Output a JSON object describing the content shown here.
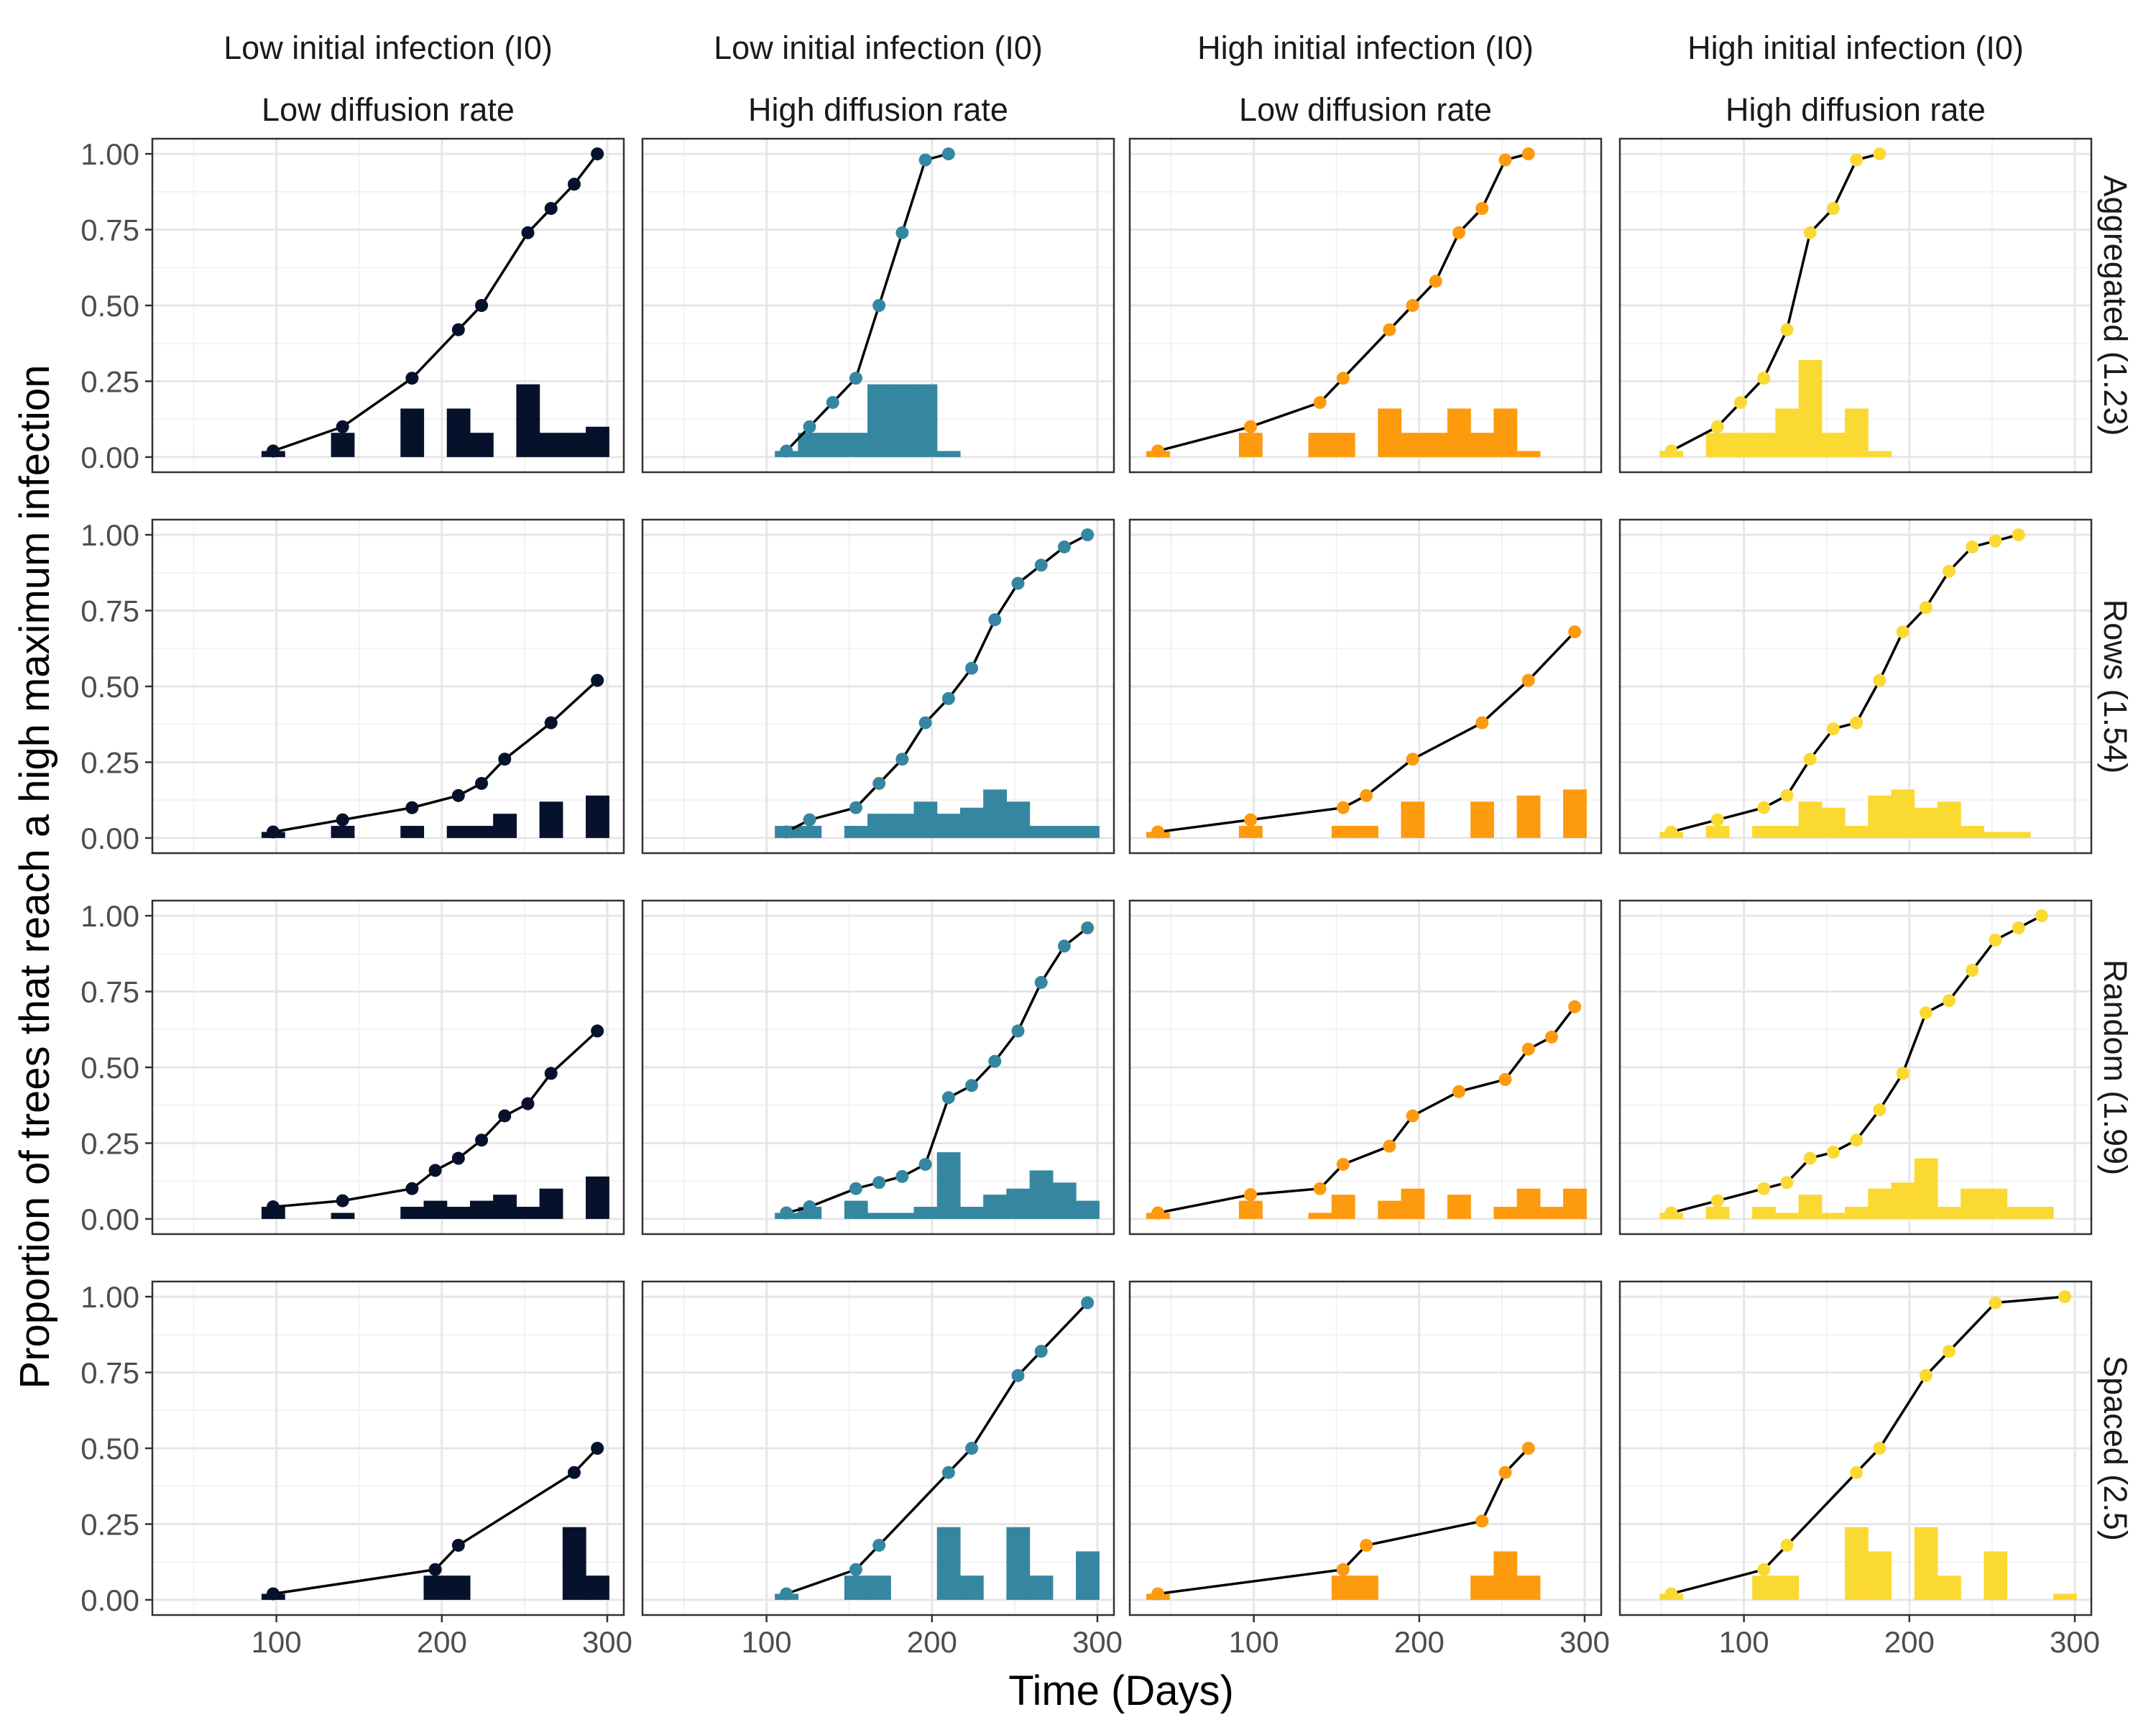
{
  "chart_data": {
    "type": "line",
    "layout": "facet-grid",
    "xlabel": "Time (Days)",
    "ylabel": "Proportion of trees that reach a high maximum infection",
    "xlim": [
      25,
      310
    ],
    "ylim": [
      -0.05,
      1.05
    ],
    "x_ticks": [
      100,
      200,
      300
    ],
    "y_ticks": [
      0,
      0.25,
      0.5,
      0.75,
      1
    ],
    "y_tick_labels": [
      "0.00",
      "0.25",
      "0.50",
      "0.75",
      "1.00"
    ],
    "grid": true,
    "bin_width": 14,
    "columns": [
      {
        "line1": "Low initial infection (I0)",
        "line2": "Low diffusion rate",
        "color": "#06122b"
      },
      {
        "line1": "Low initial infection (I0)",
        "line2": "High diffusion rate",
        "color": "#3587a1"
      },
      {
        "line1": "High initial infection (I0)",
        "line2": "Low diffusion rate",
        "color": "#fd9a0e"
      },
      {
        "line1": "High initial infection (I0)",
        "line2": "High diffusion rate",
        "color": "#fbd933"
      }
    ],
    "rows": [
      {
        "label": "Aggregated (1.23)"
      },
      {
        "label": "Rows (1.54)"
      },
      {
        "label": "Random (1.99)"
      },
      {
        "label": "Spaced (2.5)"
      }
    ],
    "panels": [
      [
        {
          "x": [
            98,
            140,
            182,
            210,
            224,
            252,
            266,
            280,
            294
          ],
          "y": [
            0.02,
            0.1,
            0.26,
            0.42,
            0.5,
            0.74,
            0.82,
            0.9,
            1.0
          ],
          "bars": [
            [
              98,
              0.02
            ],
            [
              140,
              0.08
            ],
            [
              182,
              0.16
            ],
            [
              210,
              0.16
            ],
            [
              224,
              0.08
            ],
            [
              252,
              0.24
            ],
            [
              266,
              0.08
            ],
            [
              280,
              0.08
            ],
            [
              294,
              0.1
            ]
          ]
        },
        {
          "x": [
            112,
            126,
            140,
            154,
            168,
            182,
            196,
            210
          ],
          "y": [
            0.02,
            0.1,
            0.18,
            0.26,
            0.5,
            0.74,
            0.98,
            1.0
          ],
          "bars": [
            [
              112,
              0.02
            ],
            [
              126,
              0.08
            ],
            [
              140,
              0.08
            ],
            [
              154,
              0.08
            ],
            [
              168,
              0.24
            ],
            [
              182,
              0.24
            ],
            [
              196,
              0.24
            ],
            [
              210,
              0.02
            ]
          ]
        },
        {
          "x": [
            42,
            98,
            140,
            154,
            182,
            196,
            210,
            224,
            238,
            252,
            266
          ],
          "y": [
            0.02,
            0.1,
            0.18,
            0.26,
            0.42,
            0.5,
            0.58,
            0.74,
            0.82,
            0.98,
            1.0
          ],
          "bars": [
            [
              42,
              0.02
            ],
            [
              98,
              0.08
            ],
            [
              140,
              0.08
            ],
            [
              154,
              0.08
            ],
            [
              182,
              0.16
            ],
            [
              196,
              0.08
            ],
            [
              210,
              0.08
            ],
            [
              224,
              0.16
            ],
            [
              238,
              0.08
            ],
            [
              252,
              0.16
            ],
            [
              266,
              0.02
            ]
          ]
        },
        {
          "x": [
            56,
            84,
            98,
            112,
            126,
            140,
            154,
            168,
            182
          ],
          "y": [
            0.02,
            0.1,
            0.18,
            0.26,
            0.42,
            0.74,
            0.82,
            0.98,
            1.0
          ],
          "bars": [
            [
              56,
              0.02
            ],
            [
              84,
              0.08
            ],
            [
              98,
              0.08
            ],
            [
              112,
              0.08
            ],
            [
              126,
              0.16
            ],
            [
              140,
              0.32
            ],
            [
              154,
              0.08
            ],
            [
              168,
              0.16
            ],
            [
              182,
              0.02
            ]
          ]
        }
      ],
      [
        {
          "x": [
            98,
            140,
            182,
            210,
            224,
            238,
            266,
            294
          ],
          "y": [
            0.02,
            0.06,
            0.1,
            0.14,
            0.18,
            0.26,
            0.38,
            0.52
          ],
          "bars": [
            [
              98,
              0.02
            ],
            [
              140,
              0.04
            ],
            [
              182,
              0.04
            ],
            [
              210,
              0.04
            ],
            [
              224,
              0.04
            ],
            [
              238,
              0.08
            ],
            [
              266,
              0.12
            ],
            [
              294,
              0.14
            ]
          ]
        },
        {
          "x": [
            112,
            126,
            154,
            168,
            182,
            196,
            210,
            224,
            238,
            252,
            266,
            280,
            294
          ],
          "y": [
            0.02,
            0.06,
            0.1,
            0.18,
            0.26,
            0.38,
            0.46,
            0.56,
            0.72,
            0.84,
            0.9,
            0.96,
            1.0
          ],
          "bars": [
            [
              112,
              0.04
            ],
            [
              126,
              0.04
            ],
            [
              154,
              0.04
            ],
            [
              168,
              0.08
            ],
            [
              182,
              0.08
            ],
            [
              196,
              0.12
            ],
            [
              210,
              0.08
            ],
            [
              224,
              0.1
            ],
            [
              238,
              0.16
            ],
            [
              252,
              0.12
            ],
            [
              266,
              0.04
            ],
            [
              280,
              0.04
            ],
            [
              294,
              0.04
            ]
          ]
        },
        {
          "x": [
            42,
            98,
            154,
            168,
            196,
            238,
            266,
            294
          ],
          "y": [
            0.02,
            0.06,
            0.1,
            0.14,
            0.26,
            0.38,
            0.52,
            0.68
          ],
          "bars": [
            [
              42,
              0.02
            ],
            [
              98,
              0.04
            ],
            [
              154,
              0.04
            ],
            [
              168,
              0.04
            ],
            [
              196,
              0.12
            ],
            [
              238,
              0.12
            ],
            [
              266,
              0.14
            ],
            [
              294,
              0.16
            ]
          ]
        },
        {
          "x": [
            56,
            84,
            112,
            126,
            140,
            154,
            168,
            182,
            196,
            210,
            224,
            238,
            252,
            266
          ],
          "y": [
            0.02,
            0.06,
            0.1,
            0.14,
            0.26,
            0.36,
            0.38,
            0.52,
            0.68,
            0.76,
            0.88,
            0.96,
            0.98,
            1.0
          ],
          "bars": [
            [
              56,
              0.02
            ],
            [
              84,
              0.04
            ],
            [
              112,
              0.04
            ],
            [
              126,
              0.04
            ],
            [
              140,
              0.12
            ],
            [
              154,
              0.1
            ],
            [
              168,
              0.04
            ],
            [
              182,
              0.14
            ],
            [
              196,
              0.16
            ],
            [
              210,
              0.1
            ],
            [
              224,
              0.12
            ],
            [
              238,
              0.04
            ],
            [
              252,
              0.02
            ],
            [
              266,
              0.02
            ]
          ]
        }
      ],
      [
        {
          "x": [
            98,
            140,
            182,
            196,
            210,
            224,
            238,
            252,
            266,
            294
          ],
          "y": [
            0.04,
            0.06,
            0.1,
            0.16,
            0.2,
            0.26,
            0.34,
            0.38,
            0.48,
            0.62
          ],
          "bars": [
            [
              98,
              0.04
            ],
            [
              140,
              0.02
            ],
            [
              182,
              0.04
            ],
            [
              196,
              0.06
            ],
            [
              210,
              0.04
            ],
            [
              224,
              0.06
            ],
            [
              238,
              0.08
            ],
            [
              252,
              0.04
            ],
            [
              266,
              0.1
            ],
            [
              294,
              0.14
            ]
          ]
        },
        {
          "x": [
            112,
            126,
            154,
            168,
            182,
            196,
            210,
            224,
            238,
            252,
            266,
            280,
            294
          ],
          "y": [
            0.02,
            0.04,
            0.1,
            0.12,
            0.14,
            0.18,
            0.4,
            0.44,
            0.52,
            0.62,
            0.78,
            0.9,
            0.96
          ],
          "bars": [
            [
              112,
              0.02
            ],
            [
              126,
              0.04
            ],
            [
              154,
              0.06
            ],
            [
              168,
              0.02
            ],
            [
              182,
              0.02
            ],
            [
              196,
              0.04
            ],
            [
              210,
              0.22
            ],
            [
              224,
              0.04
            ],
            [
              238,
              0.08
            ],
            [
              252,
              0.1
            ],
            [
              266,
              0.16
            ],
            [
              280,
              0.12
            ],
            [
              294,
              0.06
            ]
          ]
        },
        {
          "x": [
            42,
            98,
            140,
            154,
            182,
            196,
            224,
            252,
            266,
            280,
            294
          ],
          "y": [
            0.02,
            0.08,
            0.1,
            0.18,
            0.24,
            0.34,
            0.42,
            0.46,
            0.56,
            0.6,
            0.7
          ],
          "bars": [
            [
              42,
              0.02
            ],
            [
              98,
              0.06
            ],
            [
              140,
              0.02
            ],
            [
              154,
              0.08
            ],
            [
              182,
              0.06
            ],
            [
              196,
              0.1
            ],
            [
              224,
              0.08
            ],
            [
              252,
              0.04
            ],
            [
              266,
              0.1
            ],
            [
              280,
              0.04
            ],
            [
              294,
              0.1
            ]
          ]
        },
        {
          "x": [
            56,
            84,
            112,
            126,
            140,
            154,
            168,
            182,
            196,
            210,
            224,
            238,
            252,
            266,
            280
          ],
          "y": [
            0.02,
            0.06,
            0.1,
            0.12,
            0.2,
            0.22,
            0.26,
            0.36,
            0.48,
            0.68,
            0.72,
            0.82,
            0.92,
            0.96,
            1.0
          ],
          "bars": [
            [
              56,
              0.02
            ],
            [
              84,
              0.04
            ],
            [
              112,
              0.04
            ],
            [
              126,
              0.02
            ],
            [
              140,
              0.08
            ],
            [
              154,
              0.02
            ],
            [
              168,
              0.04
            ],
            [
              182,
              0.1
            ],
            [
              196,
              0.12
            ],
            [
              210,
              0.2
            ],
            [
              224,
              0.04
            ],
            [
              238,
              0.1
            ],
            [
              252,
              0.1
            ],
            [
              266,
              0.04
            ],
            [
              280,
              0.04
            ]
          ]
        }
      ],
      [
        {
          "x": [
            98,
            196,
            210,
            280,
            294
          ],
          "y": [
            0.02,
            0.1,
            0.18,
            0.42,
            0.5
          ],
          "bars": [
            [
              98,
              0.02
            ],
            [
              196,
              0.08
            ],
            [
              210,
              0.08
            ],
            [
              280,
              0.24
            ],
            [
              294,
              0.08
            ]
          ]
        },
        {
          "x": [
            112,
            154,
            168,
            210,
            224,
            252,
            266,
            294
          ],
          "y": [
            0.02,
            0.1,
            0.18,
            0.42,
            0.5,
            0.74,
            0.82,
            0.98
          ],
          "bars": [
            [
              112,
              0.02
            ],
            [
              154,
              0.08
            ],
            [
              168,
              0.08
            ],
            [
              210,
              0.24
            ],
            [
              224,
              0.08
            ],
            [
              252,
              0.24
            ],
            [
              266,
              0.08
            ],
            [
              294,
              0.16
            ]
          ]
        },
        {
          "x": [
            42,
            154,
            168,
            238,
            252,
            266
          ],
          "y": [
            0.02,
            0.1,
            0.18,
            0.26,
            0.42,
            0.5
          ],
          "bars": [
            [
              42,
              0.02
            ],
            [
              154,
              0.08
            ],
            [
              168,
              0.08
            ],
            [
              238,
              0.08
            ],
            [
              252,
              0.16
            ],
            [
              266,
              0.08
            ]
          ]
        },
        {
          "x": [
            56,
            112,
            126,
            168,
            182,
            210,
            224,
            252,
            294
          ],
          "y": [
            0.02,
            0.1,
            0.18,
            0.42,
            0.5,
            0.74,
            0.82,
            0.98,
            1.0
          ],
          "bars": [
            [
              56,
              0.02
            ],
            [
              112,
              0.08
            ],
            [
              126,
              0.08
            ],
            [
              168,
              0.24
            ],
            [
              182,
              0.16
            ],
            [
              210,
              0.24
            ],
            [
              224,
              0.08
            ],
            [
              252,
              0.16
            ],
            [
              294,
              0.02
            ]
          ]
        }
      ]
    ]
  }
}
